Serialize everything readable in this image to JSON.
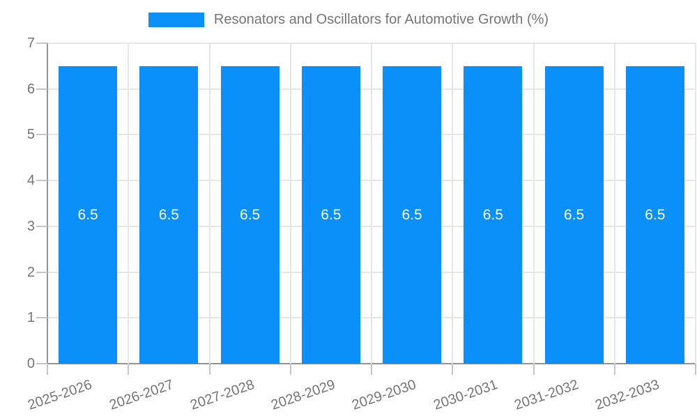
{
  "chart_data": {
    "type": "bar",
    "title": "Resonators and Oscillators for Automotive Growth (%)",
    "categories": [
      "2025-2026",
      "2026-2027",
      "2027-2028",
      "2028-2029",
      "2029-2030",
      "2030-2031",
      "2031-2032",
      "2032-2033"
    ],
    "values": [
      6.5,
      6.5,
      6.5,
      6.5,
      6.5,
      6.5,
      6.5,
      6.5
    ],
    "bar_labels": [
      "6.5",
      "6.5",
      "6.5",
      "6.5",
      "6.5",
      "6.5",
      "6.5",
      "6.5"
    ],
    "xlabel": "",
    "ylabel": "",
    "ylim": [
      0,
      7
    ],
    "yticks": [
      "0",
      "1",
      "2",
      "3",
      "4",
      "5",
      "6",
      "7"
    ],
    "grid": "on",
    "legend_position": "top",
    "colors": {
      "bar": "#0a90f8",
      "bar_label": "#ffffff",
      "axis_text": "#757575",
      "legend_text": "#757575",
      "grid_line": "#e6e6e6",
      "axis_line": "#949494",
      "tick_mark": "#c6c6c6",
      "background": "#ffffff"
    }
  }
}
